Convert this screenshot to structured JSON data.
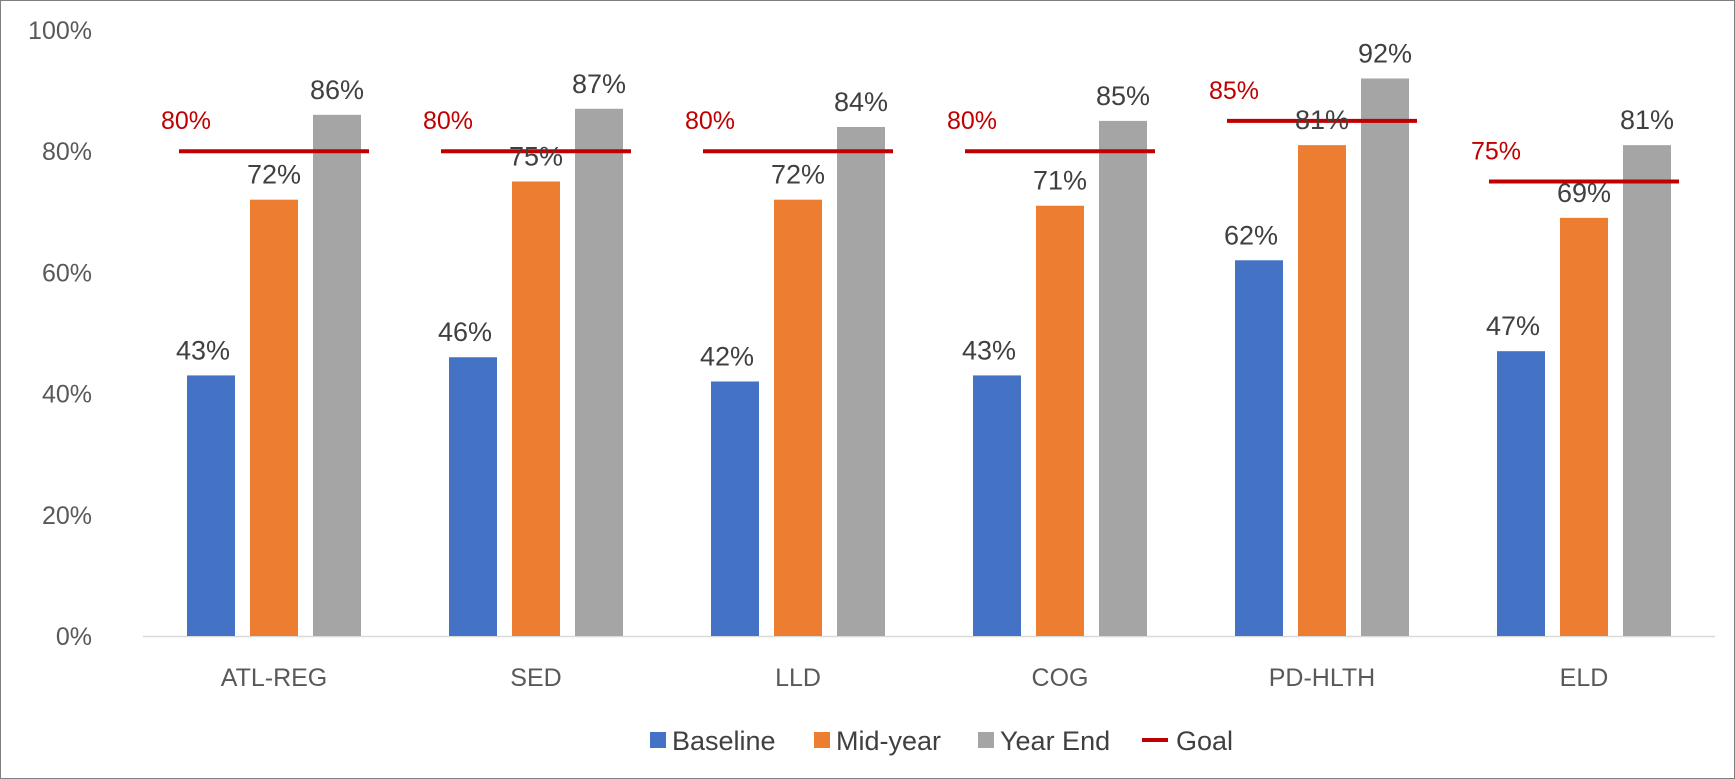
{
  "chart_data": {
    "type": "bar",
    "categories": [
      "ATL-REG",
      "SED",
      "LLD",
      "COG",
      "PD-HLTH",
      "ELD"
    ],
    "series": [
      {
        "name": "Baseline",
        "values": [
          43,
          46,
          42,
          43,
          62,
          47
        ],
        "labels": [
          "43%",
          "46%",
          "42%",
          "43%",
          "62%",
          "47%"
        ],
        "color": "#4472c4"
      },
      {
        "name": "Mid-year",
        "values": [
          72,
          75,
          72,
          71,
          81,
          69
        ],
        "labels": [
          "72%",
          "75%",
          "72%",
          "71%",
          "81%",
          "69%"
        ],
        "color": "#ed7d31"
      },
      {
        "name": "Year End",
        "values": [
          86,
          87,
          84,
          85,
          92,
          81
        ],
        "labels": [
          "86%",
          "87%",
          "84%",
          "85%",
          "92%",
          "81%"
        ],
        "color": "#a5a5a5"
      }
    ],
    "goal": {
      "name": "Goal",
      "values": [
        80,
        80,
        80,
        80,
        85,
        75
      ],
      "labels": [
        "80%",
        "80%",
        "80%",
        "80%",
        "85%",
        "75%"
      ],
      "color": "#c00000"
    },
    "y_ticks": [
      "0%",
      "20%",
      "40%",
      "60%",
      "80%",
      "100%"
    ],
    "ylim": [
      0,
      100
    ],
    "grid": false,
    "legend_position": "bottom"
  }
}
